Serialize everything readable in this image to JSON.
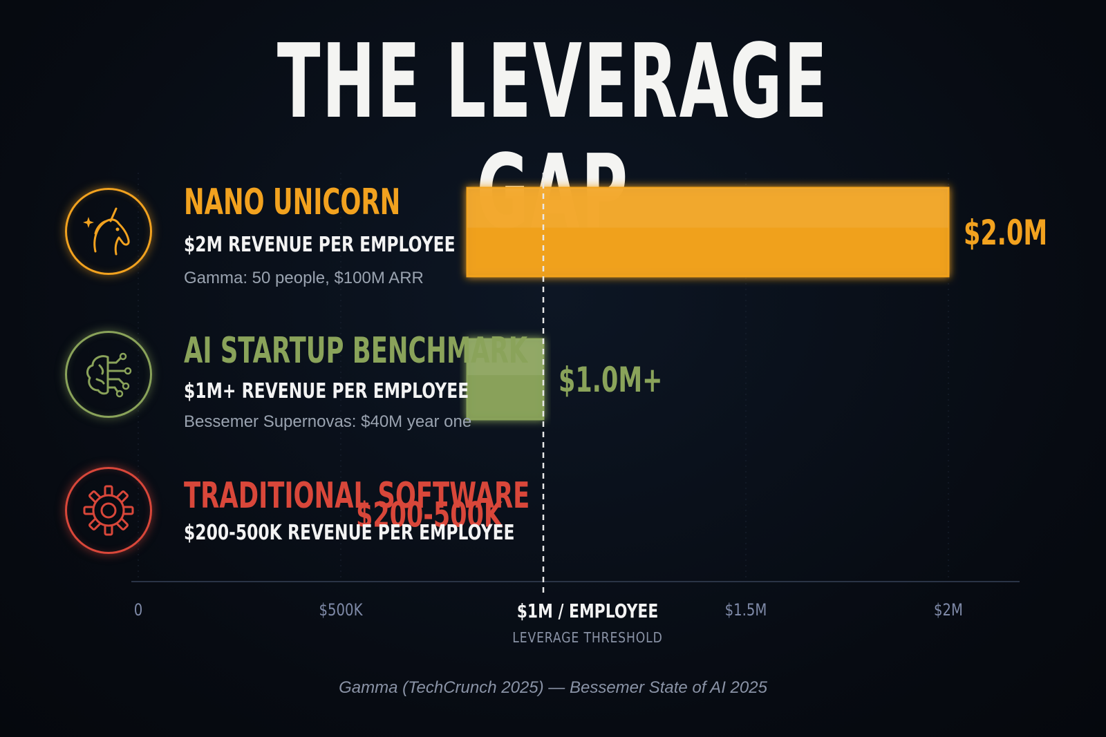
{
  "title": "THE LEVERAGE GAP",
  "chart_data": {
    "type": "bar",
    "orientation": "horizontal",
    "title": "THE LEVERAGE GAP",
    "xlim": [
      0,
      2000000
    ],
    "grid": true,
    "categories": [
      "NANO UNICORN",
      "AI STARTUP BENCHMARK",
      "TRADITIONAL SOFTWARE"
    ],
    "values": [
      2000000,
      1000000,
      500000
    ],
    "bars": [
      {
        "name": "NANO UNICORN",
        "subtitle": "$2M REVENUE PER EMPLOYEE",
        "note": "Gamma: 50 people, $100M ARR",
        "value": 2000000,
        "value_label": "$2.0M",
        "color": "#f2a21f",
        "icon": "unicorn-icon"
      },
      {
        "name": "AI STARTUP BENCHMARK",
        "subtitle": "$1M+ REVENUE PER EMPLOYEE",
        "note": "Bessemer Supernovas: $40M year one",
        "value": 1000000,
        "value_label": "$1.0M+",
        "color": "#8aa35a",
        "icon": "brain-circuit-icon"
      },
      {
        "name": "TRADITIONAL SOFTWARE",
        "subtitle": "$200-500K REVENUE PER EMPLOYEE",
        "note": "",
        "value": 500000,
        "value_label": "$200-500K",
        "color": "#d9473a",
        "icon": "gear-icon"
      }
    ],
    "x_ticks": [
      {
        "value": 0,
        "label": "0"
      },
      {
        "value": 500000,
        "label": "$500K"
      },
      {
        "value": 1500000,
        "label": "$1.5M"
      },
      {
        "value": 2000000,
        "label": "$2M"
      }
    ],
    "threshold": {
      "value": 1000000,
      "label": "$1M / EMPLOYEE",
      "sublabel": "LEVERAGE THRESHOLD"
    },
    "source": "Gamma (TechCrunch 2025) — Bessemer State of AI 2025"
  }
}
